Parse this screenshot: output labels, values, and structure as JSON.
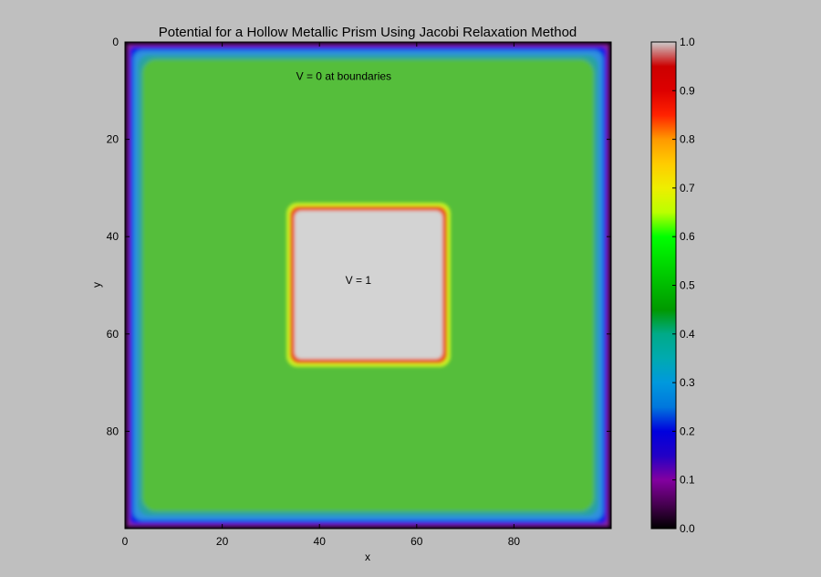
{
  "chart_data": {
    "type": "heatmap",
    "title": "Potential for a Hollow Metallic Prism Using Jacobi Relaxation Method",
    "xlabel": "x",
    "ylabel": "y",
    "xlim": [
      0,
      100
    ],
    "ylim": [
      100,
      0
    ],
    "xticks": [
      0,
      20,
      40,
      60,
      80
    ],
    "yticks": [
      0,
      20,
      40,
      60,
      80
    ],
    "grid_size": 100,
    "colormap": "nipy_spectral",
    "colorbar": {
      "range": [
        0.0,
        1.0
      ],
      "ticks": [
        "0.0",
        "0.1",
        "0.2",
        "0.3",
        "0.4",
        "0.5",
        "0.6",
        "0.7",
        "0.8",
        "0.9",
        "1.0"
      ]
    },
    "regions": {
      "boundary_potential": 0.0,
      "interior_potential": 0.5,
      "inner_prism": {
        "x_range": [
          34,
          66
        ],
        "y_range": [
          34,
          66
        ],
        "potential": 1.0
      }
    },
    "annotations": [
      {
        "text": "V = 0 at boundaries",
        "x": 45,
        "y": 7
      },
      {
        "text": "V = 1",
        "x": 48,
        "y": 49
      }
    ],
    "colors": {
      "background": "#bfbfbf",
      "interior": "#55be3a",
      "prism_fill": "#d3d3d3",
      "prism_edge": "#e85a1e",
      "frame": "#000000"
    }
  }
}
